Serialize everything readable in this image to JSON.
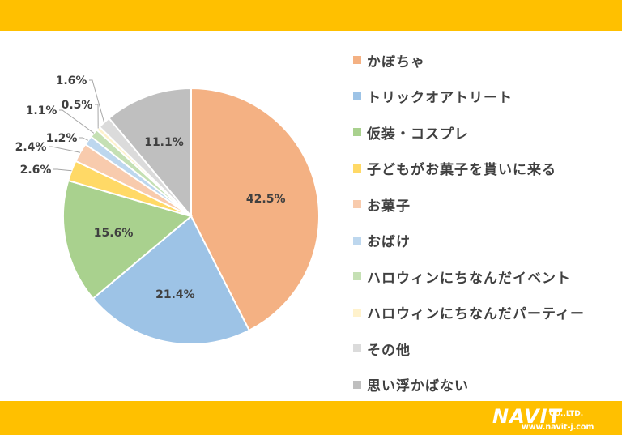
{
  "chart_data": {
    "type": "pie",
    "categories": [
      "かぼちゃ",
      "トリックオアトリート",
      "仮装・コスプレ",
      "子どもがお菓子を貰いに来る",
      "お菓子",
      "おばけ",
      "ハロウィンにちなんだイベント",
      "ハロウィンにちなんだパーティー",
      "その他",
      "思い浮かばない"
    ],
    "values": [
      42.5,
      21.4,
      15.6,
      2.6,
      2.4,
      1.2,
      1.1,
      0.5,
      1.6,
      11.1
    ],
    "value_labels": [
      "42.5%",
      "21.4%",
      "15.6%",
      "2.6%",
      "2.4%",
      "1.2%",
      "1.1%",
      "0.5%",
      "1.6%",
      "11.1%"
    ],
    "colors": [
      "#F4B183",
      "#9DC3E6",
      "#A9D18E",
      "#FFD966",
      "#F8CBAD",
      "#BDD7EE",
      "#C5E0B4",
      "#FFF2CC",
      "#DBDBDB",
      "#BFBFBF"
    ],
    "legend_position": "right",
    "start_angle": "12 o'clock, clockwise"
  },
  "logo": {
    "main": "NAVIT",
    "co": "CO.,LTD.",
    "url": "www.navit-j.com"
  }
}
